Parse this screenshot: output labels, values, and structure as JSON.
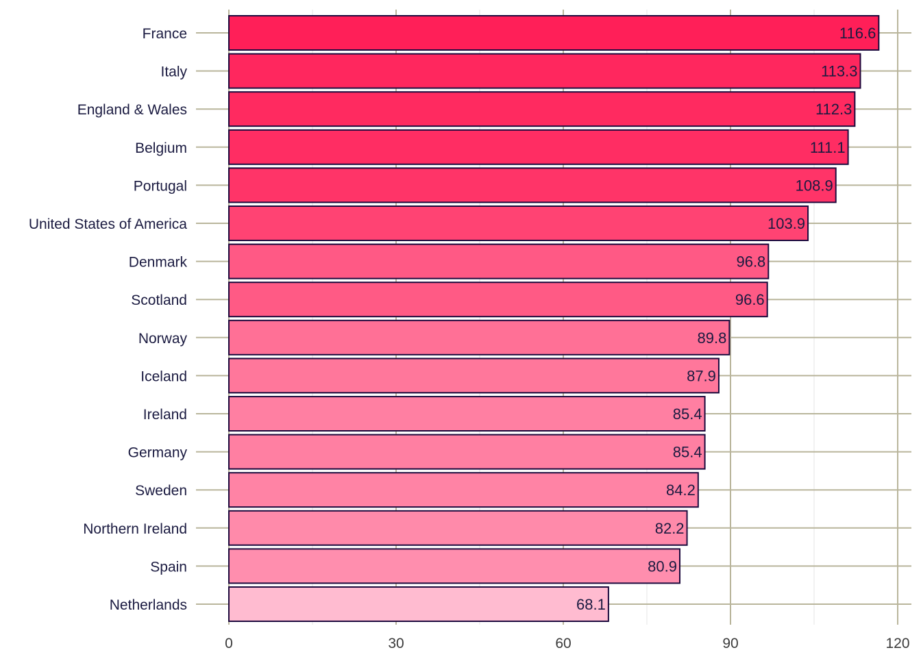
{
  "chart_data": {
    "type": "bar",
    "orientation": "horizontal",
    "title": "",
    "xlabel": "",
    "ylabel": "",
    "categories": [
      "France",
      "Italy",
      "England & Wales",
      "Belgium",
      "Portugal",
      "United States of America",
      "Denmark",
      "Scotland",
      "Norway",
      "Iceland",
      "Ireland",
      "Germany",
      "Sweden",
      "Northern Ireland",
      "Spain",
      "Netherlands"
    ],
    "values": [
      116.6,
      113.3,
      112.3,
      111.1,
      108.9,
      103.9,
      96.8,
      96.6,
      89.8,
      87.9,
      85.4,
      85.4,
      84.2,
      82.2,
      80.9,
      68.1
    ],
    "data_labels": [
      "116.6",
      "113.3",
      "112.3",
      "111.1",
      "108.9",
      "103.9",
      "96.8",
      "96.6",
      "89.8",
      "87.9",
      "85.4",
      "85.4",
      "84.2",
      "82.2",
      "80.9",
      "68.1"
    ],
    "xlim": [
      0,
      120
    ],
    "x_ticks": [
      0,
      30,
      60,
      90,
      120
    ],
    "x_tick_labels": [
      "0",
      "30",
      "60",
      "90",
      "120"
    ],
    "grid": true,
    "legend": "none",
    "colors": {
      "fill_high": "#ff1f58",
      "fill_low": "#ffbbd0",
      "bar_outline": "#1c0a3d",
      "grid_major": "#b9b59b",
      "grid_minor": "#e4e4e4",
      "label_text": "#1a1a40",
      "tick_text": "#3a3a3a"
    }
  }
}
